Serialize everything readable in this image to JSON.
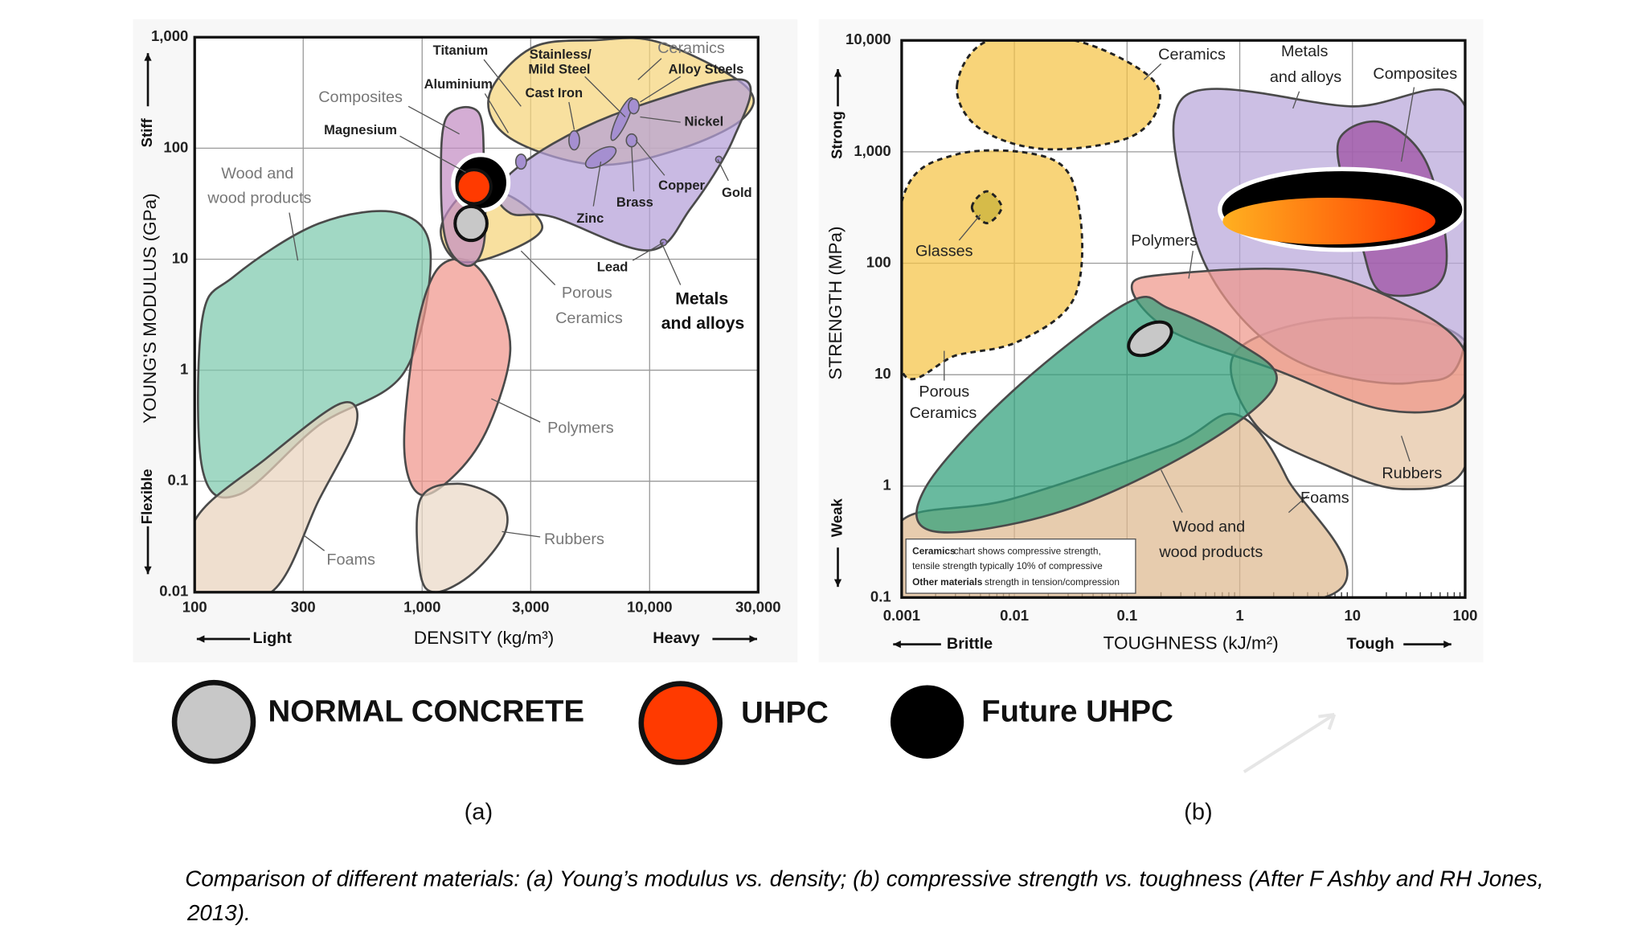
{
  "chart_data": [
    {
      "type": "ashby",
      "panel_label": "(a)",
      "xlabel": "DENSITY (kg/m³)",
      "ylabel": "YOUNG'S MODULUS (GPa)",
      "xscale": "log",
      "yscale": "log",
      "grid": true,
      "xlim": [
        100,
        30000
      ],
      "ylim": [
        0.01,
        1000
      ],
      "xticks": [
        100,
        300,
        {
          "value": 1000,
          "label": "1,000"
        },
        {
          "value": 3000,
          "label": "3,000"
        },
        {
          "value": 10000,
          "label": "10,000"
        },
        {
          "value": 30000,
          "label": "30,000"
        }
      ],
      "yticks": [
        0.01,
        0.1,
        1,
        10,
        100,
        {
          "value": 1000,
          "label": "1,000"
        }
      ],
      "axis_notes": {
        "x_low": "Light",
        "x_high": "Heavy",
        "y_high": "Stiff",
        "y_low": "Flexible"
      },
      "regions": [
        {
          "label": [
            "Wood and",
            "wood products"
          ],
          "color": "#7dc9ad",
          "x": [
            108,
            149,
            352,
            789,
            1090,
            834,
            352,
            157,
            108
          ],
          "y": [
            2.9,
            7,
            21,
            26,
            11,
            0.96,
            0.32,
            0.076,
            0.13
          ]
        },
        {
          "label": [
            "Foams"
          ],
          "color": "#e9d2bc",
          "x": [
            100,
            206,
            437,
            513,
            352,
            217,
            100
          ],
          "y": [
            0.044,
            0.16,
            0.5,
            0.32,
            0.068,
            0.01,
            0.01
          ]
        },
        {
          "label": [
            "Polymers"
          ],
          "color": "#f0968c",
          "x": [
            929,
            1150,
            1590,
            2080,
            2440,
            1970,
            1430,
            980,
            834
          ],
          "y": [
            1.9,
            7.8,
            9.7,
            5,
            1.5,
            0.32,
            0.12,
            0.076,
            0.2
          ]
        },
        {
          "label": [
            "Rubbers"
          ],
          "color": "#ead8c6",
          "x": [
            980,
            1430,
            2190,
            2320,
            1680,
            1150,
            980
          ],
          "y": [
            0.068,
            0.095,
            0.068,
            0.035,
            0.015,
            0.01,
            0.015
          ]
        },
        {
          "label": [
            "Porous",
            "Ceramics"
          ],
          "color": "#f5d47a",
          "x": [
            1210,
            1590,
            2440,
            3370,
            2190,
            1430
          ],
          "y": [
            19,
            41,
            37,
            19,
            11,
            9.7
          ]
        },
        {
          "label": [
            "Composites"
          ],
          "color": "#c38dc4",
          "x": [
            1280,
            1770,
            1870,
            1870,
            1590,
            1280,
            1210
          ],
          "y": [
            190,
            210,
            64,
            14,
            8.7,
            14,
            51
          ]
        },
        {
          "label": [
            "Ceramics"
          ],
          "color": "#f5d47a",
          "x": [
            1970,
            3030,
            5780,
            11000,
            26100,
            26100,
            13700,
            5780,
            2440
          ],
          "y": [
            297,
            800,
            940,
            900,
            370,
            190,
            99,
            71,
            123
          ]
        },
        {
          "label": [
            "Metals",
            "and alloys"
          ],
          "color": "#b49fd8",
          "x": [
            2190,
            3760,
            8890,
            26100,
            23400,
            15200,
            9900,
            3760,
            2440
          ],
          "y": [
            46,
            110,
            240,
            410,
            123,
            29,
            12,
            24,
            26
          ]
        }
      ],
      "annotations": [
        [
          "Titanium"
        ],
        [
          "Aluminium"
        ],
        [
          "Stainless/",
          "Mild Steel"
        ],
        [
          "Cast Iron"
        ],
        [
          "Alloy Steels"
        ],
        [
          "Magnesium"
        ],
        [
          "Nickel"
        ],
        [
          "Copper"
        ],
        [
          "Gold"
        ],
        [
          "Brass"
        ],
        [
          "Zinc"
        ],
        [
          "Lead"
        ]
      ],
      "series": [
        {
          "name": "NORMAL CONCRETE",
          "color": "#c8c8c8",
          "x": [
            1640
          ],
          "y": [
            21
          ]
        },
        {
          "name": "UHPC",
          "color": "#ff3a00",
          "x": [
            1690
          ],
          "y": [
            45
          ]
        },
        {
          "name": "Future UHPC",
          "color": "#000000",
          "x": [
            1810
          ],
          "y": [
            49
          ]
        }
      ]
    },
    {
      "type": "ashby",
      "panel_label": "(b)",
      "xlabel": "TOUGHNESS (kJ/m²)",
      "ylabel": "STRENGTH (MPa)",
      "xscale": "log",
      "yscale": "log",
      "grid": true,
      "xlim": [
        0.001,
        100
      ],
      "ylim": [
        0.1,
        10000
      ],
      "xticks": [
        0.001,
        0.01,
        0.1,
        1,
        10,
        100
      ],
      "yticks": [
        0.1,
        1,
        10,
        100,
        {
          "value": 1000,
          "label": "1,000"
        },
        {
          "value": 10000,
          "label": "10,000"
        }
      ],
      "axis_notes": {
        "x_low": "Brittle",
        "x_high": "Tough",
        "y_high": "Strong",
        "y_low": "Weak"
      },
      "regions": [
        {
          "label": [
            "Foams"
          ],
          "color": "#deb98f",
          "x": [
            0.001,
            0.0092,
            0.24,
            0.92,
            2.6,
            5.6,
            0.001
          ],
          "y": [
            0.49,
            0.76,
            2.3,
            4.4,
            1.2,
            0.1,
            0.1
          ]
        },
        {
          "label": [
            "Rubbers"
          ],
          "color": "#e4c3a2",
          "x": [
            0.92,
            7.7,
            100,
            100,
            28,
            6.2,
            1.4
          ],
          "y": [
            16,
            32,
            20,
            1.5,
            0.94,
            1.5,
            3.5
          ]
        },
        {
          "label": [
            "Metals",
            "and alloys"
          ],
          "color": "#b9a6da",
          "x": [
            0.33,
            9.6,
            100,
            100,
            35,
            4,
            0.88,
            0.37
          ],
          "y": [
            3190,
            2560,
            2560,
            20,
            8.5,
            12,
            39,
            229
          ]
        },
        {
          "label": [
            "Composites"
          ],
          "color": "#9c4ea1",
          "x": [
            7.7,
            18,
            44,
            68,
            54,
            18,
            12,
            8.6
          ],
          "y": [
            1320,
            1840,
            850,
            147,
            61,
            55,
            147,
            442
          ]
        },
        {
          "label": [
            "Polymers"
          ],
          "color": "#ef978a",
          "x": [
            0.11,
            0.24,
            4,
            35,
            100,
            84,
            18,
            2.1,
            0.24
          ],
          "y": [
            61,
            80,
            85,
            39,
            16,
            5.5,
            4.9,
            11,
            25
          ]
        },
        {
          "label": [
            "Wood and",
            "wood products"
          ],
          "color": "#2f9f7a",
          "x": [
            0.0016,
            0.0092,
            0.1,
            0.24,
            0.92,
            2.1,
            0.46,
            0.027,
            0.002
          ],
          "y": [
            0.94,
            6.8,
            44,
            39,
            20,
            8.5,
            2.3,
            0.6,
            0.39
          ]
        },
        {
          "label": [
            "Ceramics"
          ],
          "color": "#f5c445",
          "dashed": true,
          "x": [
            0.0031,
            0.0059,
            0.034,
            0.15,
            0.19,
            0.1,
            0.018,
            0.0048
          ],
          "y": [
            3970,
            10000,
            10000,
            4960,
            2560,
            1320,
            1060,
            1650
          ]
        },
        {
          "label": [
            "Porous",
            "Ceramics"
          ],
          "color": "#f5c445",
          "dashed": true,
          "x": [
            0.001,
            0.0031,
            0.022,
            0.038,
            0.034,
            0.011,
            0.0031,
            0.001
          ],
          "y": [
            355,
            950,
            850,
            285,
            49,
            20,
            15,
            11
          ]
        },
        {
          "label": [
            "Glasses"
          ],
          "color": "#c9b136",
          "dashed": true,
          "x": [
            0.0042,
            0.0057,
            0.0077,
            0.0057
          ],
          "y": [
            318,
            442,
            318,
            229
          ]
        }
      ],
      "note": [
        "Ceramics",
        "chart shows compressive strength,",
        "tensile strength typically 10% of compressive",
        "Other materials",
        "strength in tension/compression"
      ],
      "series": [
        {
          "color": "#c8c8c8",
          "x": [
            0.16
          ],
          "y": [
            21
          ]
        },
        {
          "color": "#ff3a00",
          "x": [
            6.2
          ],
          "y": [
            239
          ]
        },
        {
          "color": "#000000",
          "x": [
            8.1
          ],
          "y": [
            304
          ]
        }
      ]
    }
  ],
  "caption": [
    "Comparison of different materials:  (a) Young’s modulus vs. density; (b) compressive strength vs. toughness (After F Ashby and RH Jones,",
    "2013)."
  ]
}
